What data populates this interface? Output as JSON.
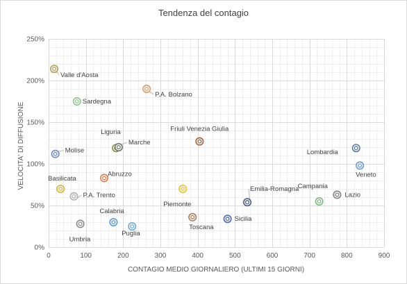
{
  "chart_data": {
    "type": "scatter",
    "title": "Tendenza del contagio",
    "xlabel": "CONTAGIO MEDIO GIORNALIERO (ULTIMI 15 GIORNI)",
    "ylabel": "VELOCITA' DI DIFFUSIONE",
    "xlim": [
      0,
      900
    ],
    "ylim": [
      0,
      2.5
    ],
    "x_ticks": [
      0,
      100,
      200,
      300,
      400,
      500,
      600,
      700,
      800,
      900
    ],
    "y_ticks": [
      0,
      0.5,
      1.0,
      1.5,
      2.0,
      2.5
    ],
    "x_tick_labels": [
      "0",
      "100",
      "200",
      "300",
      "400",
      "500",
      "600",
      "700",
      "800",
      "900"
    ],
    "y_tick_labels": [
      "0%",
      "50%",
      "100%",
      "150%",
      "200%",
      "250%"
    ],
    "grid": true,
    "legend": "none",
    "points": [
      {
        "label": "Valle d'Aosta",
        "x": 15,
        "y": 2.14,
        "color": "#b89a5a"
      },
      {
        "label": "P.A. Bolzano",
        "x": 263,
        "y": 1.9,
        "color": "#e09a6a"
      },
      {
        "label": "Sardegna",
        "x": 76,
        "y": 1.75,
        "color": "#8cc58c"
      },
      {
        "label": "Friuli Venezia Giulia",
        "x": 405,
        "y": 1.27,
        "color": "#a0603a"
      },
      {
        "label": "Liguria",
        "x": 181,
        "y": 1.19,
        "color": "#8a8a4a"
      },
      {
        "label": "Marche",
        "x": 188,
        "y": 1.2,
        "color": "#6a7a6a"
      },
      {
        "label": "Molise",
        "x": 18,
        "y": 1.12,
        "color": "#6a8ac8"
      },
      {
        "label": "Lombardia",
        "x": 825,
        "y": 1.19,
        "color": "#5a7aaa"
      },
      {
        "label": "Veneto",
        "x": 835,
        "y": 0.98,
        "color": "#6a9ad8"
      },
      {
        "label": "Abruzzo",
        "x": 149,
        "y": 0.83,
        "color": "#e07a4a"
      },
      {
        "label": "Basilicata",
        "x": 32,
        "y": 0.7,
        "color": "#d8b040"
      },
      {
        "label": "Piemonte",
        "x": 360,
        "y": 0.7,
        "color": "#e8c030"
      },
      {
        "label": "P.A. Trento",
        "x": 68,
        "y": 0.61,
        "color": "#b0b0b0"
      },
      {
        "label": "Emilia-Romagna",
        "x": 533,
        "y": 0.54,
        "color": "#4a5a8a"
      },
      {
        "label": "Campania",
        "x": 726,
        "y": 0.55,
        "color": "#7ab87a"
      },
      {
        "label": "Lazio",
        "x": 774,
        "y": 0.63,
        "color": "#808080"
      },
      {
        "label": "Umbria",
        "x": 85,
        "y": 0.28,
        "color": "#8a8a8a"
      },
      {
        "label": "Calabria",
        "x": 174,
        "y": 0.3,
        "color": "#5a9ad8"
      },
      {
        "label": "Puglia",
        "x": 224,
        "y": 0.25,
        "color": "#6aaae0"
      },
      {
        "label": "Toscana",
        "x": 386,
        "y": 0.36,
        "color": "#b07a5a"
      },
      {
        "label": "Sicilia",
        "x": 480,
        "y": 0.34,
        "color": "#4a6aa8"
      }
    ]
  }
}
